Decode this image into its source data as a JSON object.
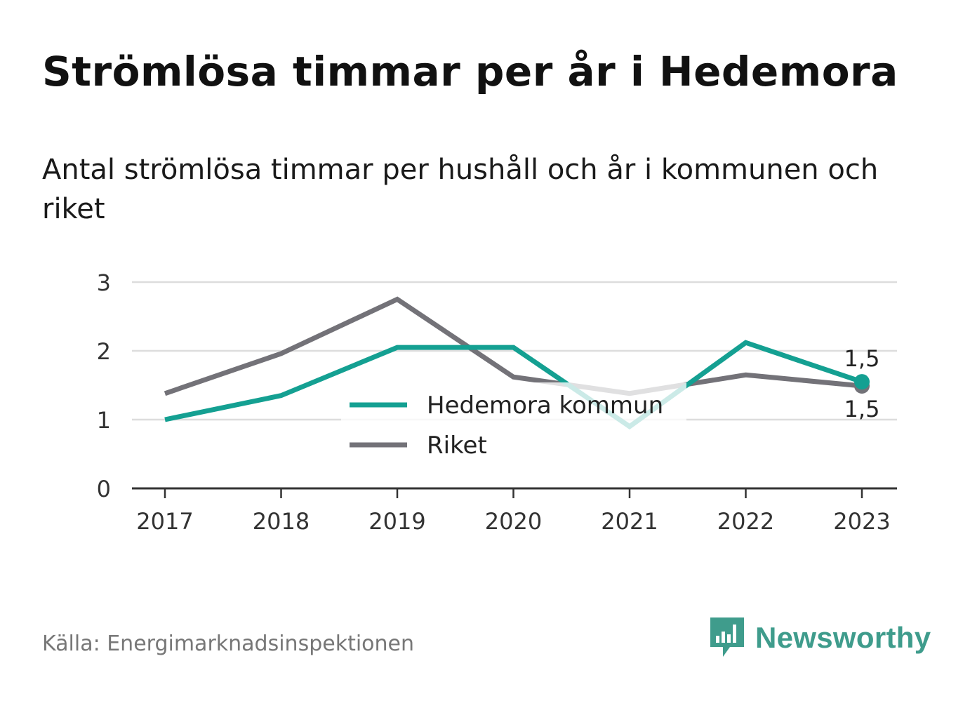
{
  "title": "Strömlösa timmar per år i Hedemora",
  "subtitle": "Antal strömlösa timmar per hushåll och år i kommunen och riket",
  "source": "Källa: Energimarknadsinspektionen",
  "brand": "Newsworthy",
  "colors": {
    "hedemora": "#14a092",
    "riket": "#737278",
    "grid": "#dddddd",
    "axis": "#333333",
    "brand": "#3f9c8c"
  },
  "chart_data": {
    "type": "line",
    "categories": [
      "2017",
      "2018",
      "2019",
      "2020",
      "2021",
      "2022",
      "2023"
    ],
    "series": [
      {
        "name": "Hedemora kommun",
        "values": [
          1.0,
          1.35,
          2.05,
          2.05,
          0.9,
          2.12,
          1.55
        ]
      },
      {
        "name": "Riket",
        "values": [
          1.38,
          1.96,
          2.75,
          1.62,
          1.38,
          1.65,
          1.49
        ]
      }
    ],
    "ylim": [
      0,
      3
    ],
    "yticks": [
      "0",
      "1",
      "2",
      "3"
    ],
    "grid": true,
    "legend": "center",
    "end_labels": [
      "1,5",
      "1,5"
    ],
    "xlabel": "",
    "ylabel": ""
  }
}
